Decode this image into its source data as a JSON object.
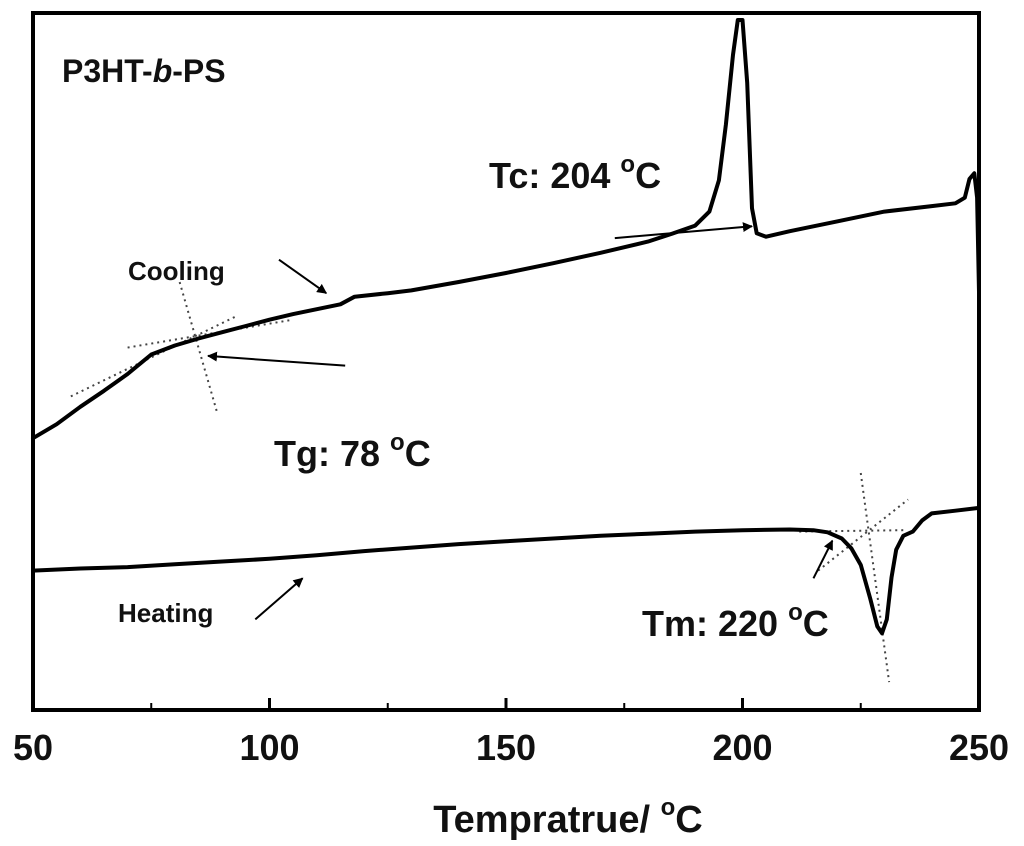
{
  "chart_data": {
    "type": "line",
    "title": "P3HT-b-PS",
    "title_parts": [
      "P3HT-",
      "b",
      "-PS"
    ],
    "xlabel": "Tempratrue/ °C",
    "xlabel_parts": {
      "text": "Tempratrue/ ",
      "degree": "o",
      "unit": "C"
    },
    "ylabel": "",
    "xlim": [
      50,
      250
    ],
    "ylim": [
      0,
      1
    ],
    "x_ticks": [
      50,
      100,
      150,
      200,
      250
    ],
    "x_tick_labels": [
      "50",
      "100",
      "150",
      "200",
      "250"
    ],
    "x_minor_ticks": [
      75,
      125,
      175,
      225
    ],
    "grid": false,
    "legend": "none",
    "series": [
      {
        "name": "Cooling",
        "color": "#000000",
        "points": [
          [
            50,
            0.39
          ],
          [
            55,
            0.41
          ],
          [
            60,
            0.435
          ],
          [
            65,
            0.458
          ],
          [
            70,
            0.482
          ],
          [
            75,
            0.51
          ],
          [
            80,
            0.523
          ],
          [
            85,
            0.533
          ],
          [
            90,
            0.542
          ],
          [
            95,
            0.551
          ],
          [
            100,
            0.56
          ],
          [
            105,
            0.568
          ],
          [
            110,
            0.575
          ],
          [
            115,
            0.582
          ],
          [
            118,
            0.593
          ],
          [
            125,
            0.598
          ],
          [
            130,
            0.602
          ],
          [
            140,
            0.614
          ],
          [
            150,
            0.627
          ],
          [
            160,
            0.641
          ],
          [
            170,
            0.656
          ],
          [
            180,
            0.672
          ],
          [
            185,
            0.683
          ],
          [
            190,
            0.695
          ],
          [
            193,
            0.715
          ],
          [
            195,
            0.76
          ],
          [
            196.5,
            0.84
          ],
          [
            198,
            0.94
          ],
          [
            199,
            0.99
          ],
          [
            200,
            0.99
          ],
          [
            201,
            0.9
          ],
          [
            202,
            0.72
          ],
          [
            203,
            0.684
          ],
          [
            205,
            0.679
          ],
          [
            210,
            0.687
          ],
          [
            220,
            0.701
          ],
          [
            230,
            0.715
          ],
          [
            240,
            0.723
          ],
          [
            245,
            0.727
          ],
          [
            247,
            0.735
          ],
          [
            248,
            0.762
          ],
          [
            249,
            0.77
          ],
          [
            249.6,
            0.735
          ],
          [
            250,
            0.6
          ]
        ]
      },
      {
        "name": "Heating",
        "color": "#000000",
        "points": [
          [
            50,
            0.2
          ],
          [
            60,
            0.203
          ],
          [
            70,
            0.205
          ],
          [
            80,
            0.209
          ],
          [
            90,
            0.213
          ],
          [
            100,
            0.217
          ],
          [
            110,
            0.222
          ],
          [
            120,
            0.228
          ],
          [
            130,
            0.233
          ],
          [
            140,
            0.238
          ],
          [
            150,
            0.242
          ],
          [
            160,
            0.246
          ],
          [
            170,
            0.25
          ],
          [
            180,
            0.253
          ],
          [
            190,
            0.256
          ],
          [
            200,
            0.258
          ],
          [
            210,
            0.259
          ],
          [
            215,
            0.258
          ],
          [
            218,
            0.255
          ],
          [
            221,
            0.246
          ],
          [
            223,
            0.232
          ],
          [
            225,
            0.208
          ],
          [
            227,
            0.16
          ],
          [
            228.5,
            0.12
          ],
          [
            229.5,
            0.11
          ],
          [
            230.5,
            0.13
          ],
          [
            231.5,
            0.19
          ],
          [
            232.5,
            0.23
          ],
          [
            234,
            0.25
          ],
          [
            236,
            0.256
          ],
          [
            238,
            0.272
          ],
          [
            240,
            0.282
          ],
          [
            245,
            0.286
          ],
          [
            250,
            0.29
          ]
        ]
      }
    ],
    "guide_lines": [
      {
        "name": "tg-baseline-low",
        "from": [
          58,
          0.45
        ],
        "to": [
          93,
          0.565
        ]
      },
      {
        "name": "tg-baseline-high",
        "from": [
          70,
          0.52
        ],
        "to": [
          105,
          0.56
        ]
      },
      {
        "name": "tg-tangent",
        "from": [
          81,
          0.614
        ],
        "to": [
          89,
          0.425
        ]
      },
      {
        "name": "tm-baseline",
        "from": [
          212,
          0.256
        ],
        "to": [
          234,
          0.258
        ]
      },
      {
        "name": "tm-tangent",
        "from": [
          216,
          0.2
        ],
        "to": [
          235,
          0.302
        ]
      },
      {
        "name": "tm-steep",
        "from": [
          225,
          0.34
        ],
        "to": [
          231,
          0.04
        ]
      }
    ],
    "annotations": [
      {
        "id": "tc",
        "label": "Tc: 204 ",
        "degree": "o",
        "unit": "C",
        "value": 204,
        "arrow_from": [
          173,
          0.677
        ],
        "arrow_to": [
          202,
          0.694
        ]
      },
      {
        "id": "tg",
        "label": "Tg: 78 ",
        "degree": "o",
        "unit": "C",
        "value": 78,
        "arrow_from": [
          116,
          0.494
        ],
        "arrow_to": [
          87,
          0.508
        ]
      },
      {
        "id": "tm",
        "label": "Tm: 220 ",
        "degree": "o",
        "unit": "C",
        "value": 220,
        "arrow_from": [
          215,
          0.189
        ],
        "arrow_to": [
          219,
          0.243
        ]
      },
      {
        "id": "cooling",
        "label": "Cooling",
        "arrow_from": [
          102,
          0.646
        ],
        "arrow_to": [
          112,
          0.598
        ]
      },
      {
        "id": "heating",
        "label": "Heating",
        "arrow_from": [
          97,
          0.13
        ],
        "arrow_to": [
          107,
          0.189
        ]
      }
    ]
  }
}
